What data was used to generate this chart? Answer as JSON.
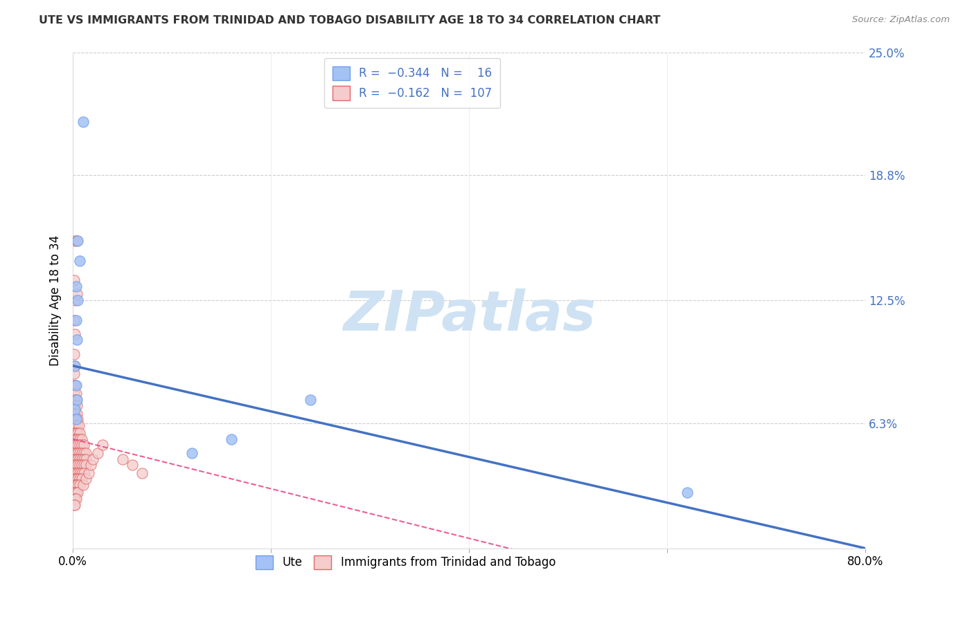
{
  "title": "UTE VS IMMIGRANTS FROM TRINIDAD AND TOBAGO DISABILITY AGE 18 TO 34 CORRELATION CHART",
  "source": "Source: ZipAtlas.com",
  "ylabel": "Disability Age 18 to 34",
  "xlim": [
    0,
    0.8
  ],
  "ylim": [
    0,
    0.25
  ],
  "yticks": [
    0.0,
    0.063,
    0.125,
    0.188,
    0.25
  ],
  "ytick_labels": [
    "",
    "6.3%",
    "12.5%",
    "18.8%",
    "25.0%"
  ],
  "xticks": [
    0.0,
    0.2,
    0.4,
    0.6,
    0.8
  ],
  "xtick_labels": [
    "0.0%",
    "",
    "",
    "",
    "80.0%"
  ],
  "blue_color": "#a4c2f4",
  "pink_color": "#f4cccc",
  "blue_edge": "#6d9eeb",
  "pink_edge": "#e06666",
  "line_blue": "#4472c4",
  "line_pink": "#ea4c89",
  "watermark": "ZIPatlas",
  "watermark_color": "#cfe2f3",
  "ute_line": [
    0.0,
    0.092,
    0.8,
    0.0
  ],
  "tt_line": [
    0.0,
    0.055,
    0.6,
    -0.02
  ],
  "ute_points": [
    [
      0.01,
      0.215
    ],
    [
      0.005,
      0.155
    ],
    [
      0.007,
      0.145
    ],
    [
      0.003,
      0.132
    ],
    [
      0.005,
      0.125
    ],
    [
      0.003,
      0.115
    ],
    [
      0.004,
      0.105
    ],
    [
      0.002,
      0.092
    ],
    [
      0.003,
      0.082
    ],
    [
      0.004,
      0.075
    ],
    [
      0.002,
      0.07
    ],
    [
      0.003,
      0.065
    ],
    [
      0.24,
      0.075
    ],
    [
      0.16,
      0.055
    ],
    [
      0.12,
      0.048
    ],
    [
      0.62,
      0.028
    ]
  ],
  "tt_points": [
    [
      0.002,
      0.155
    ],
    [
      0.004,
      0.155
    ],
    [
      0.001,
      0.135
    ],
    [
      0.002,
      0.125
    ],
    [
      0.004,
      0.128
    ],
    [
      0.001,
      0.115
    ],
    [
      0.002,
      0.108
    ],
    [
      0.001,
      0.098
    ],
    [
      0.002,
      0.092
    ],
    [
      0.001,
      0.088
    ],
    [
      0.001,
      0.082
    ],
    [
      0.002,
      0.082
    ],
    [
      0.001,
      0.078
    ],
    [
      0.003,
      0.078
    ],
    [
      0.001,
      0.075
    ],
    [
      0.003,
      0.075
    ],
    [
      0.001,
      0.072
    ],
    [
      0.002,
      0.072
    ],
    [
      0.004,
      0.072
    ],
    [
      0.001,
      0.068
    ],
    [
      0.002,
      0.068
    ],
    [
      0.004,
      0.068
    ],
    [
      0.001,
      0.065
    ],
    [
      0.003,
      0.065
    ],
    [
      0.005,
      0.065
    ],
    [
      0.001,
      0.062
    ],
    [
      0.002,
      0.062
    ],
    [
      0.004,
      0.062
    ],
    [
      0.006,
      0.062
    ],
    [
      0.001,
      0.058
    ],
    [
      0.002,
      0.058
    ],
    [
      0.003,
      0.058
    ],
    [
      0.005,
      0.058
    ],
    [
      0.007,
      0.058
    ],
    [
      0.001,
      0.055
    ],
    [
      0.002,
      0.055
    ],
    [
      0.003,
      0.055
    ],
    [
      0.005,
      0.055
    ],
    [
      0.007,
      0.055
    ],
    [
      0.009,
      0.055
    ],
    [
      0.001,
      0.052
    ],
    [
      0.002,
      0.052
    ],
    [
      0.003,
      0.052
    ],
    [
      0.005,
      0.052
    ],
    [
      0.007,
      0.052
    ],
    [
      0.009,
      0.052
    ],
    [
      0.011,
      0.052
    ],
    [
      0.001,
      0.048
    ],
    [
      0.002,
      0.048
    ],
    [
      0.003,
      0.048
    ],
    [
      0.005,
      0.048
    ],
    [
      0.007,
      0.048
    ],
    [
      0.009,
      0.048
    ],
    [
      0.011,
      0.048
    ],
    [
      0.013,
      0.048
    ],
    [
      0.001,
      0.045
    ],
    [
      0.002,
      0.045
    ],
    [
      0.003,
      0.045
    ],
    [
      0.005,
      0.045
    ],
    [
      0.007,
      0.045
    ],
    [
      0.009,
      0.045
    ],
    [
      0.011,
      0.045
    ],
    [
      0.013,
      0.045
    ],
    [
      0.001,
      0.042
    ],
    [
      0.002,
      0.042
    ],
    [
      0.003,
      0.042
    ],
    [
      0.005,
      0.042
    ],
    [
      0.007,
      0.042
    ],
    [
      0.009,
      0.042
    ],
    [
      0.011,
      0.042
    ],
    [
      0.013,
      0.042
    ],
    [
      0.001,
      0.038
    ],
    [
      0.002,
      0.038
    ],
    [
      0.003,
      0.038
    ],
    [
      0.005,
      0.038
    ],
    [
      0.007,
      0.038
    ],
    [
      0.009,
      0.038
    ],
    [
      0.011,
      0.038
    ],
    [
      0.001,
      0.035
    ],
    [
      0.002,
      0.035
    ],
    [
      0.003,
      0.035
    ],
    [
      0.005,
      0.035
    ],
    [
      0.007,
      0.035
    ],
    [
      0.009,
      0.035
    ],
    [
      0.001,
      0.032
    ],
    [
      0.002,
      0.032
    ],
    [
      0.003,
      0.032
    ],
    [
      0.005,
      0.032
    ],
    [
      0.007,
      0.032
    ],
    [
      0.001,
      0.028
    ],
    [
      0.002,
      0.028
    ],
    [
      0.003,
      0.028
    ],
    [
      0.005,
      0.028
    ],
    [
      0.001,
      0.025
    ],
    [
      0.002,
      0.025
    ],
    [
      0.003,
      0.025
    ],
    [
      0.001,
      0.022
    ],
    [
      0.002,
      0.022
    ],
    [
      0.01,
      0.032
    ],
    [
      0.013,
      0.035
    ],
    [
      0.016,
      0.038
    ],
    [
      0.018,
      0.042
    ],
    [
      0.02,
      0.045
    ],
    [
      0.025,
      0.048
    ],
    [
      0.03,
      0.052
    ],
    [
      0.05,
      0.045
    ],
    [
      0.06,
      0.042
    ],
    [
      0.07,
      0.038
    ]
  ]
}
